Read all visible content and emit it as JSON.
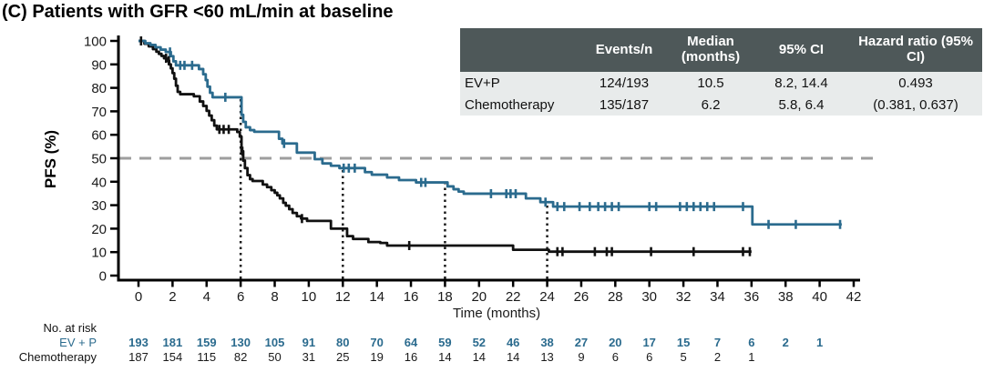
{
  "title": "(C) Patients with GFR <60 mL/min at baseline",
  "colors": {
    "evp": "#2b6b8e",
    "chemo": "#111111",
    "median_dashed_line": "#9e9e9e",
    "landmark_dotted_line": "#1a1a1a",
    "table_header_bg": "#4e5859",
    "table_row_bg": "#e8ebeb"
  },
  "summary_table": {
    "headers": [
      "",
      "Events/n",
      "Median (months)",
      "95% CI",
      "Hazard ratio (95% CI)"
    ],
    "rows": [
      {
        "label": "EV+P",
        "events_n": "124/193",
        "median": "10.5",
        "ci": "8.2, 14.4",
        "hazard_ratio": "0.493"
      },
      {
        "label": "Chemotherapy",
        "events_n": "135/187",
        "median": "6.2",
        "ci": "5.8, 6.4",
        "hazard_ratio": "(0.381, 0.637)"
      }
    ]
  },
  "chart_data": {
    "type": "line",
    "subtype": "kaplan-meier-step",
    "xlabel": "Time (months)",
    "ylabel": "PFS (%)",
    "xlim": [
      0,
      42
    ],
    "ylim": [
      0,
      100
    ],
    "x_ticks": [
      0,
      2,
      4,
      6,
      8,
      10,
      12,
      14,
      16,
      18,
      20,
      22,
      24,
      26,
      28,
      30,
      32,
      34,
      36,
      38,
      40,
      42
    ],
    "y_ticks": [
      0,
      10,
      20,
      30,
      40,
      50,
      60,
      70,
      80,
      90,
      100
    ],
    "grid": false,
    "reference_lines": {
      "horizontal_pfs": 50,
      "vertical_months": [
        6,
        12,
        18,
        24
      ]
    },
    "series": [
      {
        "name": "Chemotherapy",
        "color": "#111111",
        "steps": [
          [
            0,
            100
          ],
          [
            0.35,
            98.8
          ],
          [
            0.6,
            97.7
          ],
          [
            0.85,
            96.5
          ],
          [
            1.05,
            95.4
          ],
          [
            1.2,
            94.5
          ],
          [
            1.35,
            93.6
          ],
          [
            1.5,
            92.6
          ],
          [
            1.65,
            91.6
          ],
          [
            1.8,
            90
          ],
          [
            1.9,
            88.3
          ],
          [
            2.0,
            86.3
          ],
          [
            2.1,
            83.9
          ],
          [
            2.2,
            80.9
          ],
          [
            2.3,
            78.3
          ],
          [
            2.45,
            77.3
          ],
          [
            3.25,
            76.4
          ],
          [
            3.6,
            74.2
          ],
          [
            3.8,
            72.3
          ],
          [
            4.0,
            70.2
          ],
          [
            4.15,
            68.2
          ],
          [
            4.3,
            66.2
          ],
          [
            4.45,
            63.9
          ],
          [
            4.6,
            62.3
          ],
          [
            5.8,
            61.2
          ],
          [
            5.95,
            59.2
          ],
          [
            6.05,
            53
          ],
          [
            6.15,
            49
          ],
          [
            6.25,
            45.8
          ],
          [
            6.4,
            42.8
          ],
          [
            6.55,
            41.1
          ],
          [
            6.7,
            40.3
          ],
          [
            7.3,
            38.8
          ],
          [
            7.55,
            37.7
          ],
          [
            7.8,
            36.4
          ],
          [
            8.0,
            35.3
          ],
          [
            8.15,
            34.2
          ],
          [
            8.3,
            32.9
          ],
          [
            8.5,
            31
          ],
          [
            8.65,
            29.8
          ],
          [
            8.85,
            28.3
          ],
          [
            9.05,
            26.7
          ],
          [
            9.3,
            25.3
          ],
          [
            9.55,
            24.3
          ],
          [
            9.9,
            23.3
          ],
          [
            11.3,
            20
          ],
          [
            12.25,
            16.8
          ],
          [
            12.6,
            15.6
          ],
          [
            13.5,
            14.3
          ],
          [
            14.2,
            13.9
          ],
          [
            14.6,
            12.8
          ],
          [
            22.0,
            11.0
          ],
          [
            24.1,
            10.2
          ]
        ],
        "end_t": 36.0,
        "censor_t": [
          0.15,
          1.62,
          1.78,
          4.75,
          5.0,
          5.3,
          6.1,
          9.6,
          15.9,
          24.6,
          24.9,
          26.8,
          27.5,
          27.8,
          30.1,
          32.6,
          35.5,
          35.9
        ]
      },
      {
        "name": "EV+P",
        "color": "#2b6b8e",
        "steps": [
          [
            0,
            100
          ],
          [
            0.4,
            99
          ],
          [
            0.7,
            98.3
          ],
          [
            1.0,
            97.3
          ],
          [
            1.3,
            96.3
          ],
          [
            1.6,
            95.3
          ],
          [
            1.9,
            93.5
          ],
          [
            2.05,
            91.3
          ],
          [
            2.2,
            89.6
          ],
          [
            3.55,
            88
          ],
          [
            3.8,
            85.8
          ],
          [
            3.95,
            83.3
          ],
          [
            4.05,
            80.5
          ],
          [
            4.2,
            77.9
          ],
          [
            4.35,
            76
          ],
          [
            6.05,
            68.5
          ],
          [
            6.15,
            65.5
          ],
          [
            6.3,
            63.2
          ],
          [
            6.55,
            62
          ],
          [
            6.8,
            61.3
          ],
          [
            8.25,
            58.3
          ],
          [
            8.45,
            56.3
          ],
          [
            9.3,
            52.4
          ],
          [
            10.35,
            49.6
          ],
          [
            10.8,
            47.8
          ],
          [
            11.3,
            46.8
          ],
          [
            11.8,
            45.8
          ],
          [
            13.3,
            44.1
          ],
          [
            13.7,
            43
          ],
          [
            14.6,
            41.8
          ],
          [
            15.3,
            40.7
          ],
          [
            16.3,
            39.7
          ],
          [
            18.15,
            38
          ],
          [
            18.5,
            36.8
          ],
          [
            18.8,
            35.8
          ],
          [
            19.1,
            34.9
          ],
          [
            22.75,
            32.9
          ],
          [
            23.6,
            31.3
          ],
          [
            24.35,
            29.4
          ],
          [
            36.05,
            21.8
          ]
        ],
        "end_t": 41.3,
        "censor_t": [
          1.85,
          2.45,
          2.7,
          3.15,
          5.1,
          8.55,
          12.05,
          12.35,
          12.7,
          16.6,
          16.85,
          20.7,
          21.6,
          21.85,
          22.15,
          23.9,
          24.6,
          25.0,
          25.9,
          26.5,
          27.0,
          27.4,
          27.8,
          28.2,
          30.0,
          30.4,
          31.8,
          32.2,
          32.6,
          33.0,
          33.4,
          33.8,
          35.5,
          37.0,
          38.6,
          41.2
        ]
      }
    ]
  },
  "risk_table": {
    "label": "No. at risk",
    "rows": [
      {
        "name": "EV + P",
        "times": [
          0,
          2,
          4,
          6,
          8,
          10,
          12,
          14,
          16,
          18,
          20,
          22,
          24,
          26,
          28,
          30,
          32,
          34,
          36,
          38,
          40
        ],
        "values": [
          193,
          181,
          159,
          130,
          105,
          91,
          80,
          70,
          64,
          59,
          52,
          46,
          38,
          27,
          20,
          17,
          15,
          7,
          6,
          2,
          1
        ]
      },
      {
        "name": "Chemotherapy",
        "times": [
          0,
          2,
          4,
          6,
          8,
          10,
          12,
          14,
          16,
          18,
          20,
          22,
          24,
          26,
          28,
          30,
          32,
          34,
          36
        ],
        "values": [
          187,
          154,
          115,
          82,
          50,
          31,
          25,
          19,
          16,
          14,
          14,
          14,
          13,
          9,
          6,
          6,
          5,
          2,
          1
        ]
      }
    ]
  }
}
